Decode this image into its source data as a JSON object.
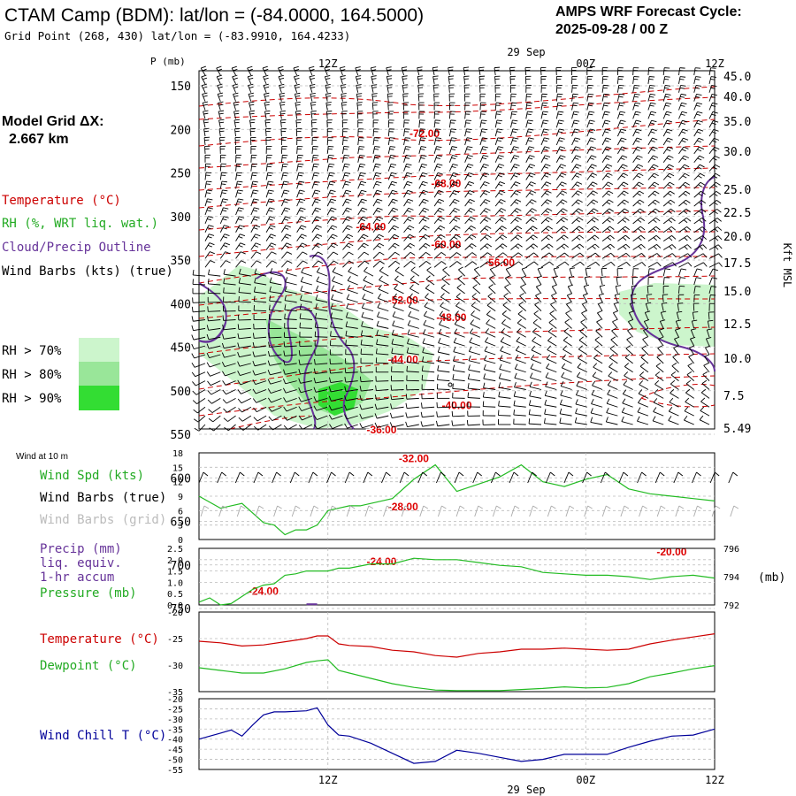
{
  "header": {
    "title": "CTAM Camp (BDM):  lat/lon = (-84.0000, 164.5000)",
    "subtitle": "Grid Point (268, 430) lat/lon = (-83.9910, 164.4233)",
    "cycle_label": "AMPS WRF Forecast Cycle:",
    "cycle_value": "2025-09-28 / 00  Z"
  },
  "time_axis": {
    "top_date": "29 Sep",
    "bottom_date": "29 Sep",
    "ticks": [
      "12Z",
      "00Z",
      "12Z"
    ]
  },
  "legend": {
    "model_grid_label": "Model Grid ΔX:",
    "model_grid_value": "2.667 km",
    "temperature": "Temperature (°C)",
    "rh": "RH (%, WRT liq. wat.)",
    "cloud": "Cloud/Precip Outline",
    "wind": "Wind Barbs (kts) (true)",
    "rh70": "RH > 70%",
    "rh80": "RH > 80%",
    "rh90": "RH > 90%",
    "rh_colors": [
      "#ccf5cc",
      "#99e699",
      "#33dd33"
    ]
  },
  "colors": {
    "temperature": "#cc0000",
    "rh": "#22aa22",
    "cloud": "#663399",
    "wind": "#000000",
    "wind_grid": "#aaaaaa",
    "precip": "#663399",
    "windchill": "#000099"
  },
  "chart_data": [
    {
      "type": "line",
      "id": "cross_section",
      "y_axis_left_label": "P (mb)",
      "pressure_ticks": [
        "150",
        "200",
        "250",
        "300",
        "350",
        "400",
        "450",
        "500",
        "550",
        "600",
        "650",
        "700",
        "750"
      ],
      "height_ticks": [
        "45.0",
        "40.0",
        "35.0",
        "30.0",
        "25.0",
        "22.5",
        "20.0",
        "17.5",
        "15.0",
        "12.5",
        "10.0",
        "7.5",
        "5.49"
      ],
      "right_axis_label": "Kft MSL",
      "x_range_hours": [
        0,
        48
      ],
      "isotherm_labels": [
        {
          "text": "-72.00",
          "x_hour": 21,
          "p": 205
        },
        {
          "text": "-68.00",
          "x_hour": 23,
          "p": 262
        },
        {
          "text": "-64.00",
          "x_hour": 16,
          "p": 312
        },
        {
          "text": "-60.00",
          "x_hour": 23,
          "p": 332
        },
        {
          "text": "-56.00",
          "x_hour": 28,
          "p": 353
        },
        {
          "text": "-52.00",
          "x_hour": 19,
          "p": 396
        },
        {
          "text": "-48.00",
          "x_hour": 23.5,
          "p": 416
        },
        {
          "text": "-44.00",
          "x_hour": 19,
          "p": 464
        },
        {
          "text": "-40.00",
          "x_hour": 24,
          "p": 517
        },
        {
          "text": "-36.00",
          "x_hour": 17,
          "p": 545
        },
        {
          "text": "-32.00",
          "x_hour": 20,
          "p": 578
        },
        {
          "text": "-28.00",
          "x_hour": 19,
          "p": 633
        },
        {
          "text": "-24.00",
          "x_hour": 17,
          "p": 696
        },
        {
          "text": "-24.00",
          "x_hour": 6,
          "p": 730
        },
        {
          "text": "-20.00",
          "x_hour": 44,
          "p": 685
        }
      ]
    },
    {
      "type": "line",
      "id": "wind10m",
      "panel_label": "Wind at 10 m",
      "series_labels": [
        "Wind Spd (kts)",
        "Wind Barbs (true)",
        "Wind Barbs (grid)"
      ],
      "ylim": [
        0,
        18
      ],
      "yticks": [
        "0",
        "3",
        "6",
        "9",
        "12",
        "15",
        "18"
      ],
      "x": [
        0,
        2,
        4,
        6,
        7,
        8,
        9,
        10,
        11,
        12,
        13,
        14,
        15,
        16,
        17,
        18,
        20,
        22,
        24,
        26,
        28,
        30,
        32,
        34,
        36,
        38,
        40,
        42,
        44,
        46,
        48
      ],
      "values": [
        9,
        6.5,
        7.5,
        3.5,
        3,
        1,
        2,
        2,
        3,
        6,
        6.5,
        7,
        7,
        7.5,
        8,
        8.5,
        12.5,
        15.5,
        10,
        11.5,
        13,
        15.5,
        12,
        11,
        12.5,
        13.5,
        10.5,
        9.5,
        9,
        8.5,
        8
      ]
    },
    {
      "type": "line",
      "id": "precip_pressure",
      "series_labels": [
        "Precip (mm)",
        "liq. equiv.",
        "1-hr accum",
        "Pressure (mb)"
      ],
      "precip_ylim": [
        0,
        2.5
      ],
      "precip_ticks": [
        "0.0",
        "0.5",
        "1.0",
        "1.5",
        "2.0",
        "2.5"
      ],
      "pressure_ticks": [
        "796",
        "794",
        "792"
      ],
      "pressure_unit": "(mb)",
      "pressure_ylim": [
        792,
        796
      ],
      "x": [
        0,
        1,
        2,
        3,
        4,
        5,
        6,
        7,
        8,
        9,
        10,
        11,
        12,
        13,
        14,
        16,
        18,
        20,
        22,
        24,
        26,
        28,
        30,
        32,
        34,
        36,
        38,
        40,
        42,
        44,
        46,
        48
      ],
      "pressure": [
        792.2,
        792.5,
        792,
        792.1,
        792.6,
        793.1,
        793.4,
        793.5,
        794.1,
        794.2,
        794.4,
        794.4,
        794.4,
        794.6,
        794.6,
        794.9,
        794.9,
        795.3,
        795.2,
        795.2,
        795,
        794.8,
        794.7,
        794.3,
        794.2,
        794.1,
        794.1,
        794,
        793.8,
        794,
        794.1,
        793.9
      ],
      "precip_x": [
        10,
        11
      ],
      "precip": [
        0.03,
        0.03
      ]
    },
    {
      "type": "line",
      "id": "temp_dewpoint",
      "series_labels": [
        "Temperature (°C)",
        "Dewpoint (°C)"
      ],
      "ylim": [
        -35,
        -20
      ],
      "yticks": [
        "-20",
        "-25",
        "-30",
        "-35"
      ],
      "x": [
        0,
        2,
        4,
        6,
        8,
        10,
        11,
        12,
        13,
        14,
        16,
        18,
        20,
        22,
        24,
        26,
        28,
        30,
        32,
        34,
        36,
        38,
        40,
        42,
        44,
        46,
        48
      ],
      "temperature": [
        -25.5,
        -25.8,
        -26.4,
        -26.2,
        -25.6,
        -25,
        -24.5,
        -24.5,
        -26,
        -26.3,
        -26.5,
        -27.2,
        -27.5,
        -28.2,
        -28.5,
        -27.8,
        -27.5,
        -27,
        -27,
        -26.8,
        -27,
        -27.2,
        -27,
        -26,
        -25.3,
        -24.7,
        -24.1
      ],
      "dewpoint": [
        -30.5,
        -31,
        -31.5,
        -31.5,
        -30.7,
        -29.5,
        -29.2,
        -29,
        -31,
        -31.5,
        -32.5,
        -33.5,
        -34.2,
        -34.7,
        -34.8,
        -34.8,
        -34.8,
        -34.6,
        -34.4,
        -34.1,
        -34.3,
        -34.2,
        -33.5,
        -32.2,
        -31.5,
        -30.7,
        -30.1
      ]
    },
    {
      "type": "line",
      "id": "windchill",
      "series_labels": [
        "Wind Chill T (°C)"
      ],
      "ylim": [
        -55,
        -20
      ],
      "yticks": [
        "-20",
        "-25",
        "-30",
        "-35",
        "-40",
        "-45",
        "-50",
        "-55"
      ],
      "x": [
        0,
        2,
        3,
        4,
        5,
        6,
        7,
        8,
        10,
        11,
        12,
        13,
        14,
        16,
        18,
        20,
        22,
        24,
        26,
        28,
        30,
        32,
        34,
        36,
        38,
        40,
        42,
        44,
        46,
        48
      ],
      "values": [
        -40,
        -37,
        -35.5,
        -38.5,
        -33,
        -28,
        -26.5,
        -26.5,
        -26,
        -24.5,
        -33,
        -38,
        -38.5,
        -42,
        -47,
        -52,
        -51,
        -45.5,
        -47,
        -49,
        -51,
        -50,
        -47.5,
        -47.5,
        -47.5,
        -44,
        -41,
        -38.5,
        -38,
        -35
      ]
    }
  ]
}
